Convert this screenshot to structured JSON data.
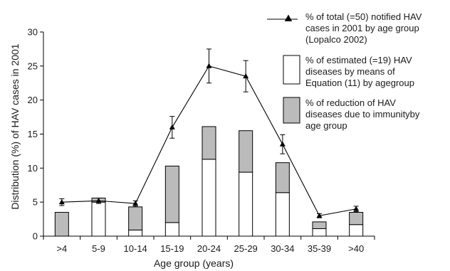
{
  "chart_data": {
    "type": "bar",
    "xlabel": "Age group (years)",
    "ylabel": "Distribution (%) of HAV cases in 2001",
    "ylim": [
      0,
      30
    ],
    "yticks": [
      0,
      5,
      10,
      15,
      20,
      25,
      30
    ],
    "categories": [
      ">4",
      "5-9",
      "10-14",
      "15-19",
      "20-24",
      "25-29",
      "30-34",
      "35-39",
      ">40"
    ],
    "stacked": true,
    "series": [
      {
        "name": "% of estimated (=19) HAV diseases by means of Equation (11) by agegroup",
        "kind": "bar",
        "color": "#ffffff",
        "values": [
          0,
          5.0,
          0.9,
          2.0,
          11.3,
          9.4,
          6.4,
          1.1,
          1.7
        ]
      },
      {
        "name": "% of reduction of HAV diseases due to immunityby age group",
        "kind": "bar",
        "color": "#bbbbbb",
        "values": [
          3.5,
          0.6,
          3.4,
          8.3,
          4.8,
          6.1,
          4.4,
          1.0,
          1.8
        ]
      },
      {
        "name": "% of total (=50) notified HAV cases in 2001 by age group (Lopalco 2002)",
        "kind": "line",
        "marker": "triangle",
        "color": "#000000",
        "values": [
          5.0,
          5.2,
          4.8,
          16.0,
          25.0,
          23.5,
          13.5,
          3.0,
          4.0
        ],
        "error": [
          0.5,
          0.4,
          0.4,
          1.6,
          2.5,
          2.3,
          1.4,
          0.3,
          0.4
        ]
      }
    ],
    "legend": [
      {
        "lines": [
          "% of total (=50) notified HAV",
          "cases in 2001 by age group",
          "(Lopalco 2002)"
        ]
      },
      {
        "lines": [
          "% of estimated (=19) HAV",
          "diseases by means of",
          "Equation (11) by agegroup"
        ]
      },
      {
        "lines": [
          "% of reduction of HAV",
          "diseases due to immunityby",
          "age group"
        ]
      }
    ],
    "legend_position": "right",
    "grid": false
  }
}
